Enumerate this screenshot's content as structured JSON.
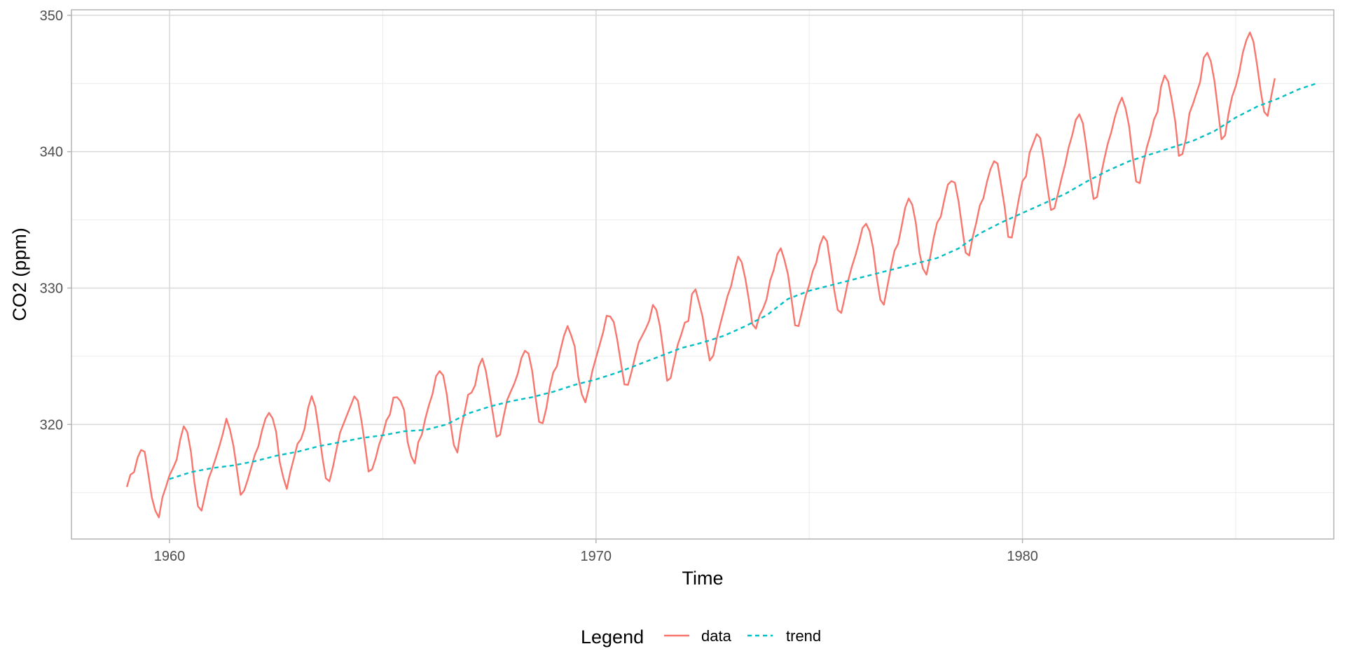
{
  "chart_data": {
    "type": "line",
    "title": "",
    "xlabel": "Time",
    "ylabel": "CO2 (ppm)",
    "xlim": [
      1957.7,
      1987.3
    ],
    "ylim": [
      311.6,
      350.4
    ],
    "x_ticks_major": [
      1960,
      1970,
      1980
    ],
    "x_tick_labels": [
      "1960",
      "1970",
      "1980"
    ],
    "x_ticks_minor": [
      1965,
      1975,
      1985
    ],
    "y_ticks_major": [
      320,
      330,
      340,
      350
    ],
    "y_tick_labels": [
      "320",
      "330",
      "340",
      "350"
    ],
    "y_ticks_minor": [
      315,
      325,
      335,
      345
    ],
    "grid": true,
    "legend": {
      "title": "Legend",
      "position": "bottom",
      "entries": [
        {
          "label": "data",
          "color": "#F8766D",
          "style": "solid"
        },
        {
          "label": "trend",
          "color": "#00BFC4",
          "style": "dashed"
        }
      ]
    },
    "series": [
      {
        "name": "data",
        "color": "#F8766D",
        "style": "solid",
        "x_start": 1959.0,
        "x_step": 0.0833333333,
        "values": [
          315.42,
          316.31,
          316.5,
          317.56,
          318.13,
          318.0,
          316.39,
          314.65,
          313.68,
          313.18,
          314.66,
          315.43,
          316.27,
          316.81,
          317.42,
          318.87,
          319.87,
          319.43,
          318.01,
          315.74,
          314.0,
          313.68,
          314.84,
          316.03,
          316.73,
          317.54,
          318.38,
          319.31,
          320.42,
          319.61,
          318.42,
          316.63,
          314.83,
          315.16,
          315.94,
          316.85,
          317.78,
          318.4,
          319.53,
          320.42,
          320.85,
          320.45,
          319.45,
          317.25,
          316.11,
          315.27,
          316.53,
          317.53,
          318.58,
          318.92,
          319.7,
          321.22,
          322.08,
          321.31,
          319.58,
          317.61,
          316.05,
          315.83,
          316.91,
          318.2,
          319.41,
          320.07,
          320.74,
          321.4,
          322.06,
          321.73,
          320.27,
          318.54,
          316.54,
          316.71,
          317.53,
          318.55,
          319.27,
          320.28,
          320.73,
          321.97,
          322.0,
          321.71,
          321.05,
          318.71,
          317.66,
          317.14,
          318.7,
          319.25,
          320.46,
          321.43,
          322.23,
          323.54,
          323.91,
          323.59,
          322.24,
          320.2,
          318.48,
          317.94,
          319.63,
          320.87,
          322.17,
          322.34,
          322.88,
          324.25,
          324.83,
          323.93,
          322.38,
          320.76,
          319.1,
          319.24,
          320.56,
          321.8,
          322.4,
          322.99,
          323.73,
          324.86,
          325.4,
          325.2,
          323.98,
          321.95,
          320.18,
          320.09,
          321.16,
          322.74,
          323.83,
          324.26,
          325.47,
          326.5,
          327.21,
          326.54,
          325.72,
          323.5,
          322.22,
          321.62,
          322.69,
          323.95,
          324.89,
          325.82,
          326.77,
          327.97,
          327.91,
          327.5,
          326.18,
          324.53,
          322.93,
          322.9,
          323.85,
          324.96,
          326.01,
          326.51,
          327.01,
          327.62,
          328.76,
          328.4,
          327.2,
          325.27,
          323.2,
          323.4,
          324.63,
          325.85,
          326.6,
          327.47,
          327.58,
          329.56,
          329.9,
          328.92,
          327.88,
          326.16,
          324.68,
          325.04,
          326.34,
          327.39,
          328.37,
          329.4,
          330.14,
          331.33,
          332.31,
          331.9,
          330.7,
          329.15,
          327.35,
          327.02,
          327.99,
          328.48,
          329.18,
          330.55,
          331.32,
          332.48,
          332.92,
          332.08,
          331.01,
          329.23,
          327.27,
          327.21,
          328.29,
          329.41,
          330.23,
          331.25,
          331.87,
          333.14,
          333.8,
          333.43,
          331.73,
          329.9,
          328.4,
          328.17,
          329.32,
          330.59,
          331.58,
          332.39,
          333.33,
          334.41,
          334.71,
          334.17,
          332.89,
          330.77,
          329.14,
          328.78,
          330.14,
          331.52,
          332.75,
          333.24,
          334.53,
          335.9,
          336.57,
          336.1,
          334.76,
          332.59,
          331.42,
          330.98,
          332.24,
          333.68,
          334.8,
          335.22,
          336.47,
          337.59,
          337.84,
          337.72,
          336.37,
          334.51,
          332.6,
          332.38,
          333.75,
          334.78,
          336.05,
          336.59,
          337.79,
          338.71,
          339.3,
          339.12,
          337.56,
          335.92,
          333.75,
          333.7,
          335.12,
          336.56,
          337.84,
          338.19,
          339.91,
          340.6,
          341.29,
          341.0,
          339.39,
          337.43,
          335.72,
          335.84,
          336.93,
          338.04,
          339.06,
          340.3,
          341.21,
          342.33,
          342.74,
          342.08,
          340.32,
          338.26,
          336.52,
          336.68,
          338.19,
          339.44,
          340.57,
          341.44,
          342.53,
          343.39,
          343.96,
          343.18,
          341.88,
          339.65,
          337.81,
          337.69,
          339.09,
          340.32,
          341.2,
          342.35,
          342.93,
          344.77,
          345.58,
          345.14,
          343.81,
          342.21,
          339.69,
          339.82,
          340.98,
          342.82,
          343.52,
          344.33,
          345.11,
          346.88,
          347.25,
          346.62,
          345.22,
          343.11,
          340.9,
          341.18,
          342.8,
          344.04,
          344.79,
          345.82,
          347.25,
          348.17,
          348.74,
          348.07,
          346.38,
          344.51,
          342.92,
          342.62,
          344.06,
          345.38
        ]
      },
      {
        "name": "trend",
        "color": "#00BFC4",
        "style": "dashed",
        "x": [
          1960.0,
          1960.5,
          1961.0,
          1961.5,
          1962.0,
          1962.5,
          1963.0,
          1963.5,
          1964.0,
          1964.5,
          1965.0,
          1965.5,
          1966.0,
          1966.5,
          1967.0,
          1967.5,
          1968.0,
          1968.5,
          1969.0,
          1969.5,
          1970.0,
          1970.5,
          1971.0,
          1971.5,
          1972.0,
          1972.5,
          1973.0,
          1973.5,
          1974.0,
          1974.5,
          1975.0,
          1975.5,
          1976.0,
          1976.5,
          1977.0,
          1977.5,
          1978.0,
          1978.5,
          1979.0,
          1979.5,
          1980.0,
          1980.5,
          1981.0,
          1981.5,
          1982.0,
          1982.5,
          1983.0,
          1983.5,
          1984.0,
          1984.5,
          1985.0,
          1985.5,
          1986.0,
          1986.5,
          1986.9
        ],
        "values": [
          316.0,
          316.5,
          316.8,
          317.0,
          317.3,
          317.7,
          318.0,
          318.4,
          318.7,
          319.0,
          319.2,
          319.5,
          319.6,
          320.0,
          320.8,
          321.3,
          321.7,
          322.0,
          322.4,
          322.9,
          323.3,
          323.8,
          324.4,
          325.0,
          325.6,
          326.0,
          326.5,
          327.2,
          328.0,
          329.2,
          329.8,
          330.2,
          330.6,
          331.0,
          331.4,
          331.8,
          332.2,
          332.9,
          334.0,
          334.8,
          335.5,
          336.2,
          336.9,
          337.8,
          338.6,
          339.3,
          339.8,
          340.3,
          340.8,
          341.5,
          342.5,
          343.3,
          343.9,
          344.6,
          345.0
        ]
      }
    ]
  }
}
